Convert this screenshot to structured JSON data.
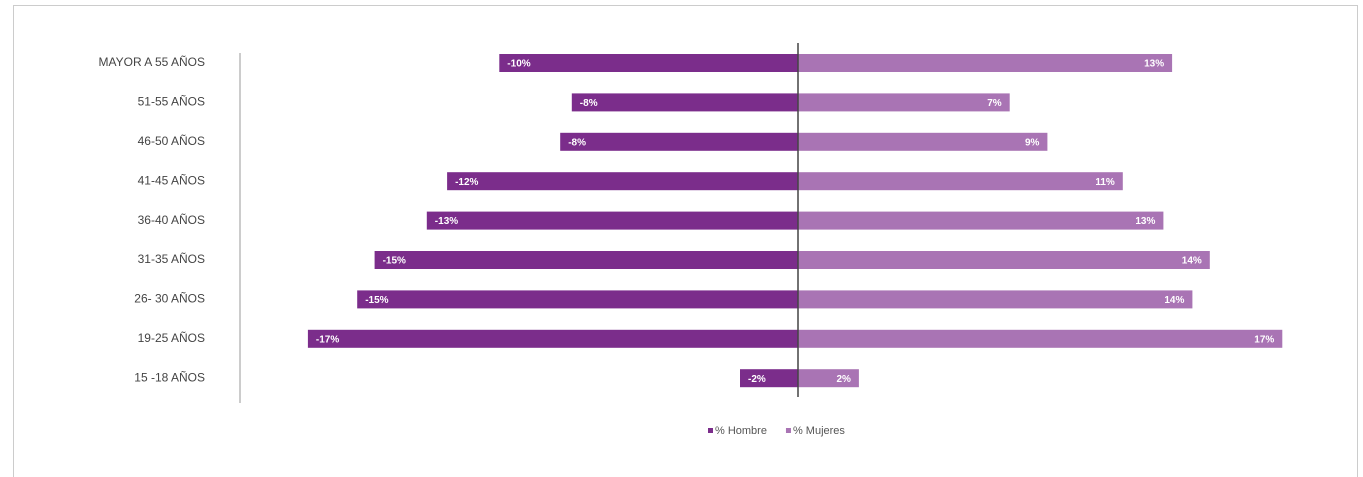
{
  "chart_data": {
    "type": "pyramid",
    "categories": [
      "MAYOR A 55 AÑOS",
      "51-55 AÑOS",
      "46-50 AÑOS",
      "41-45 AÑOS",
      "36-40 AÑOS",
      "31-35 AÑOS",
      "26- 30 AÑOS",
      "19-25 AÑOS",
      "15 -18 AÑOS"
    ],
    "series": [
      {
        "name": "% Hombre",
        "color": "#7b2d8b",
        "values": [
          -10.3,
          -7.8,
          -8.2,
          -12.1,
          -12.8,
          -14.6,
          -15.2,
          -16.9,
          -2.0
        ],
        "value_labels": [
          "-10%",
          "-8%",
          "-8%",
          "-12%",
          "-13%",
          "-15%",
          "-15%",
          "-17%",
          "-2%"
        ]
      },
      {
        "name": "% Mujeres",
        "color": "#a974b4",
        "values": [
          12.9,
          7.3,
          8.6,
          11.2,
          12.6,
          14.2,
          13.6,
          16.7,
          2.1
        ],
        "value_labels": [
          "13%",
          "7%",
          "9%",
          "11%",
          "13%",
          "14%",
          "14%",
          "17%",
          "2%"
        ]
      }
    ],
    "legend": "bottom"
  }
}
